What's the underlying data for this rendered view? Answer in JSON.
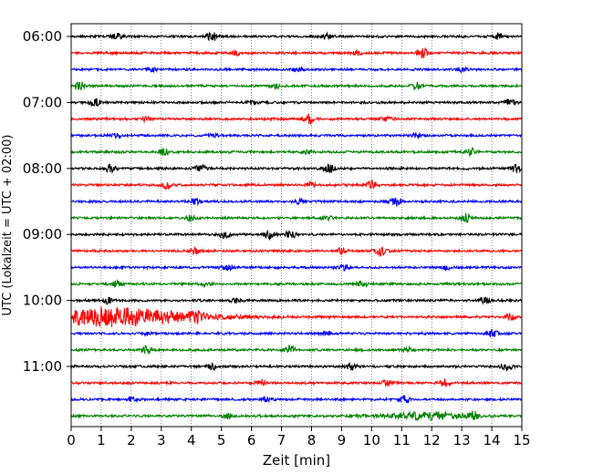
{
  "chart_data": {
    "type": "line",
    "title": "",
    "xlabel": "Zeit  [min]",
    "ylabel": "UTC (Lokalzeit = UTC + 02:00)",
    "xlim": [
      0,
      15
    ],
    "x_ticks": [
      "0",
      "1",
      "2",
      "3",
      "4",
      "5",
      "6",
      "7",
      "8",
      "9",
      "10",
      "11",
      "12",
      "13",
      "14",
      "15"
    ],
    "y_ticks": [
      "06:00",
      "07:00",
      "08:00",
      "09:00",
      "10:00",
      "11:00"
    ],
    "grid": "vertical dotted",
    "colors": [
      "#000000",
      "#ff0000",
      "#0000ff",
      "#008000"
    ],
    "rows": [
      {
        "start": "06:00",
        "color": "#000000",
        "events": [
          {
            "t": 4.7,
            "a": 5
          },
          {
            "t": 1.5,
            "a": 3
          },
          {
            "t": 8.5,
            "a": 3
          },
          {
            "t": 14.2,
            "a": 3
          }
        ]
      },
      {
        "start": "06:15",
        "color": "#ff0000",
        "events": [
          {
            "t": 11.7,
            "a": 6
          },
          {
            "t": 5.5,
            "a": 2.5
          },
          {
            "t": 9.5,
            "a": 2
          }
        ]
      },
      {
        "start": "06:30",
        "color": "#0000ff",
        "events": [
          {
            "t": 2.7,
            "a": 2
          },
          {
            "t": 7.5,
            "a": 2
          },
          {
            "t": 13,
            "a": 2
          }
        ]
      },
      {
        "start": "06:45",
        "color": "#008000",
        "events": [
          {
            "t": 0.3,
            "a": 4
          },
          {
            "t": 11.5,
            "a": 4
          },
          {
            "t": 6.8,
            "a": 2.5
          }
        ]
      },
      {
        "start": "07:00",
        "color": "#000000",
        "events": [
          {
            "t": 0.8,
            "a": 4
          },
          {
            "t": 14.6,
            "a": 4
          },
          {
            "t": 6,
            "a": 2
          }
        ]
      },
      {
        "start": "07:15",
        "color": "#ff0000",
        "events": [
          {
            "t": 7.9,
            "a": 5
          },
          {
            "t": 2.5,
            "a": 2
          },
          {
            "t": 10.5,
            "a": 2.5
          }
        ]
      },
      {
        "start": "07:30",
        "color": "#0000ff",
        "events": [
          {
            "t": 1.5,
            "a": 2
          },
          {
            "t": 4.7,
            "a": 2
          },
          {
            "t": 11.5,
            "a": 2.5
          }
        ]
      },
      {
        "start": "07:45",
        "color": "#008000",
        "events": [
          {
            "t": 3.1,
            "a": 3
          },
          {
            "t": 13.3,
            "a": 4
          },
          {
            "t": 7.9,
            "a": 2
          }
        ]
      },
      {
        "start": "08:00",
        "color": "#000000",
        "events": [
          {
            "t": 8.6,
            "a": 5
          },
          {
            "t": 1.3,
            "a": 4
          },
          {
            "t": 4.3,
            "a": 4
          },
          {
            "t": 14.8,
            "a": 5
          }
        ]
      },
      {
        "start": "08:15",
        "color": "#ff0000",
        "events": [
          {
            "t": 3.2,
            "a": 4
          },
          {
            "t": 8,
            "a": 3
          },
          {
            "t": 10,
            "a": 4
          }
        ]
      },
      {
        "start": "08:30",
        "color": "#0000ff",
        "events": [
          {
            "t": 4.1,
            "a": 4
          },
          {
            "t": 10.8,
            "a": 5
          },
          {
            "t": 7.6,
            "a": 2
          }
        ]
      },
      {
        "start": "08:45",
        "color": "#008000",
        "events": [
          {
            "t": 4,
            "a": 3
          },
          {
            "t": 13.1,
            "a": 5
          },
          {
            "t": 8.5,
            "a": 2
          }
        ]
      },
      {
        "start": "09:00",
        "color": "#000000",
        "events": [
          {
            "t": 5.1,
            "a": 4
          },
          {
            "t": 6.6,
            "a": 4
          },
          {
            "t": 7.3,
            "a": 4
          }
        ]
      },
      {
        "start": "09:15",
        "color": "#ff0000",
        "events": [
          {
            "t": 10.3,
            "a": 5
          },
          {
            "t": 4.1,
            "a": 3
          },
          {
            "t": 9,
            "a": 3
          }
        ]
      },
      {
        "start": "09:30",
        "color": "#0000ff",
        "events": [
          {
            "t": 5.2,
            "a": 3
          },
          {
            "t": 9.1,
            "a": 2.5
          },
          {
            "t": 12.5,
            "a": 2
          }
        ]
      },
      {
        "start": "09:45",
        "color": "#008000",
        "events": [
          {
            "t": 1.5,
            "a": 4
          },
          {
            "t": 9.7,
            "a": 3
          },
          {
            "t": 4.5,
            "a": 2
          }
        ]
      },
      {
        "start": "10:00",
        "color": "#000000",
        "events": [
          {
            "t": 1.2,
            "a": 4
          },
          {
            "t": 13.8,
            "a": 4
          },
          {
            "t": 5.5,
            "a": 2.5
          }
        ]
      },
      {
        "start": "10:15",
        "color": "#ff0000",
        "events": [
          {
            "t": 1.2,
            "a": 10,
            "w": 2.2
          },
          {
            "t": 14.6,
            "a": 4
          },
          {
            "t": 4.2,
            "a": 3
          }
        ]
      },
      {
        "start": "10:30",
        "color": "#0000ff",
        "events": [
          {
            "t": 14,
            "a": 5
          },
          {
            "t": 2.5,
            "a": 2
          },
          {
            "t": 8.5,
            "a": 2
          }
        ]
      },
      {
        "start": "10:45",
        "color": "#008000",
        "events": [
          {
            "t": 2.5,
            "a": 5
          },
          {
            "t": 7.3,
            "a": 4
          },
          {
            "t": 11.2,
            "a": 2
          }
        ]
      },
      {
        "start": "11:00",
        "color": "#000000",
        "events": [
          {
            "t": 4.7,
            "a": 3
          },
          {
            "t": 9.3,
            "a": 4
          },
          {
            "t": 14.5,
            "a": 4
          }
        ]
      },
      {
        "start": "11:15",
        "color": "#ff0000",
        "events": [
          {
            "t": 6.3,
            "a": 4
          },
          {
            "t": 10.5,
            "a": 3
          },
          {
            "t": 12.4,
            "a": 4
          }
        ]
      },
      {
        "start": "11:30",
        "color": "#0000ff",
        "events": [
          {
            "t": 11.1,
            "a": 4
          },
          {
            "t": 6.5,
            "a": 2.5
          },
          {
            "t": 2,
            "a": 2
          }
        ]
      },
      {
        "start": "11:45",
        "color": "#008000",
        "events": [
          {
            "t": 11.7,
            "a": 4,
            "w": 1
          },
          {
            "t": 13.4,
            "a": 4
          },
          {
            "t": 5.2,
            "a": 3
          }
        ]
      }
    ]
  }
}
